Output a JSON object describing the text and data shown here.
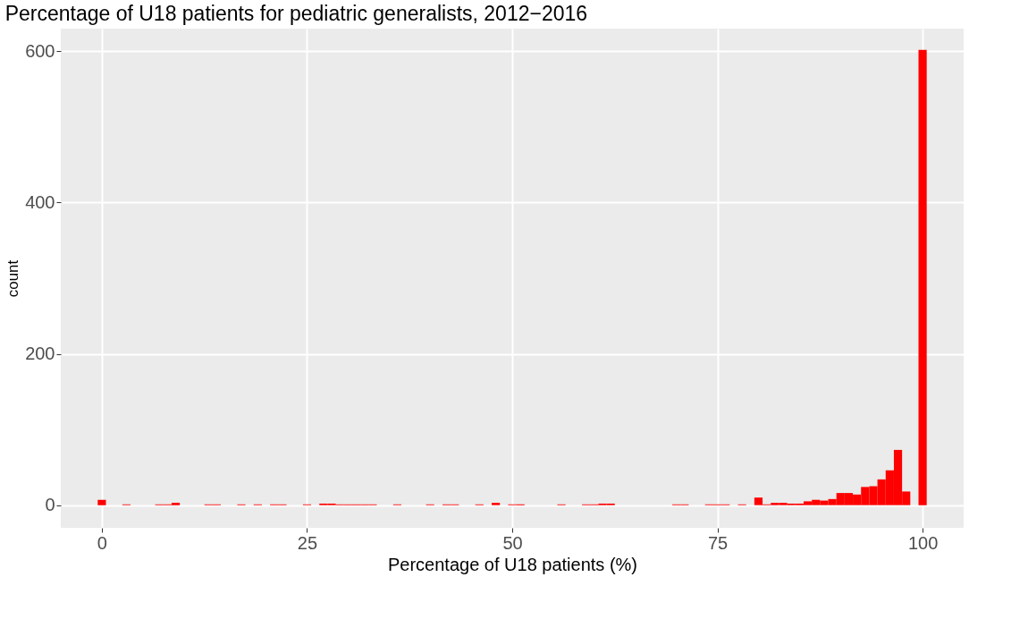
{
  "chart_data": {
    "type": "histogram",
    "title": "Percentage of U18 patients for pediatric generalists, 2012−2016",
    "xlabel": "Percentage of U18 patients (%)",
    "ylabel": "count",
    "color": "#ff0000",
    "bins": [
      -0.5,
      0.5,
      1.5,
      2.5,
      3.5,
      4.5,
      5.5,
      6.5,
      7.5,
      8.5,
      9.5,
      10.5,
      11.5,
      12.5,
      13.5,
      14.5,
      15.5,
      16.5,
      17.5,
      18.5,
      19.5,
      20.5,
      21.5,
      22.5,
      23.5,
      24.5,
      25.5,
      26.5,
      27.5,
      28.5,
      29.5,
      30.5,
      31.5,
      32.5,
      33.5,
      34.5,
      35.5,
      36.5,
      37.5,
      38.5,
      39.5,
      40.5,
      41.5,
      42.5,
      43.5,
      44.5,
      45.5,
      46.5,
      47.5,
      48.5,
      49.5,
      50.5,
      51.5,
      52.5,
      53.5,
      54.5,
      55.5,
      56.5,
      57.5,
      58.5,
      59.5,
      60.5,
      61.5,
      62.5,
      63.5,
      64.5,
      65.5,
      66.5,
      67.5,
      68.5,
      69.5,
      70.5,
      71.5,
      72.5,
      73.5,
      74.5,
      75.5,
      76.5,
      77.5,
      78.5,
      79.5,
      80.5,
      81.5,
      82.5,
      83.5,
      84.5,
      85.5,
      86.5,
      87.5,
      88.5,
      89.5,
      90.5,
      91.5,
      92.5,
      93.5,
      94.5,
      95.5,
      96.5,
      97.5,
      98.5,
      99.5,
      100.5
    ],
    "values": [
      7,
      0,
      0,
      1,
      0,
      0,
      0,
      1,
      1,
      3,
      0,
      0,
      0,
      1,
      1,
      0,
      0,
      1,
      0,
      1,
      0,
      1,
      1,
      0,
      0,
      1,
      0,
      2,
      2,
      1,
      1,
      1,
      1,
      1,
      0,
      0,
      1,
      0,
      0,
      0,
      1,
      0,
      1,
      1,
      0,
      0,
      1,
      0,
      3,
      0,
      1,
      1,
      0,
      0,
      0,
      0,
      1,
      0,
      0,
      1,
      1,
      2,
      2,
      0,
      0,
      0,
      0,
      0,
      0,
      0,
      1,
      1,
      0,
      0,
      1,
      1,
      1,
      0,
      1,
      0,
      10,
      1,
      3,
      3,
      2,
      2,
      5,
      7,
      6,
      8,
      16,
      16,
      14,
      24,
      25,
      34,
      46,
      73,
      18,
      0,
      602
    ],
    "xlim": [
      -5,
      105
    ],
    "ylim": [
      -30,
      630
    ],
    "xticks": [
      0,
      25,
      50,
      75,
      100
    ],
    "yticks": [
      0,
      200,
      400,
      600
    ],
    "grid": true
  }
}
